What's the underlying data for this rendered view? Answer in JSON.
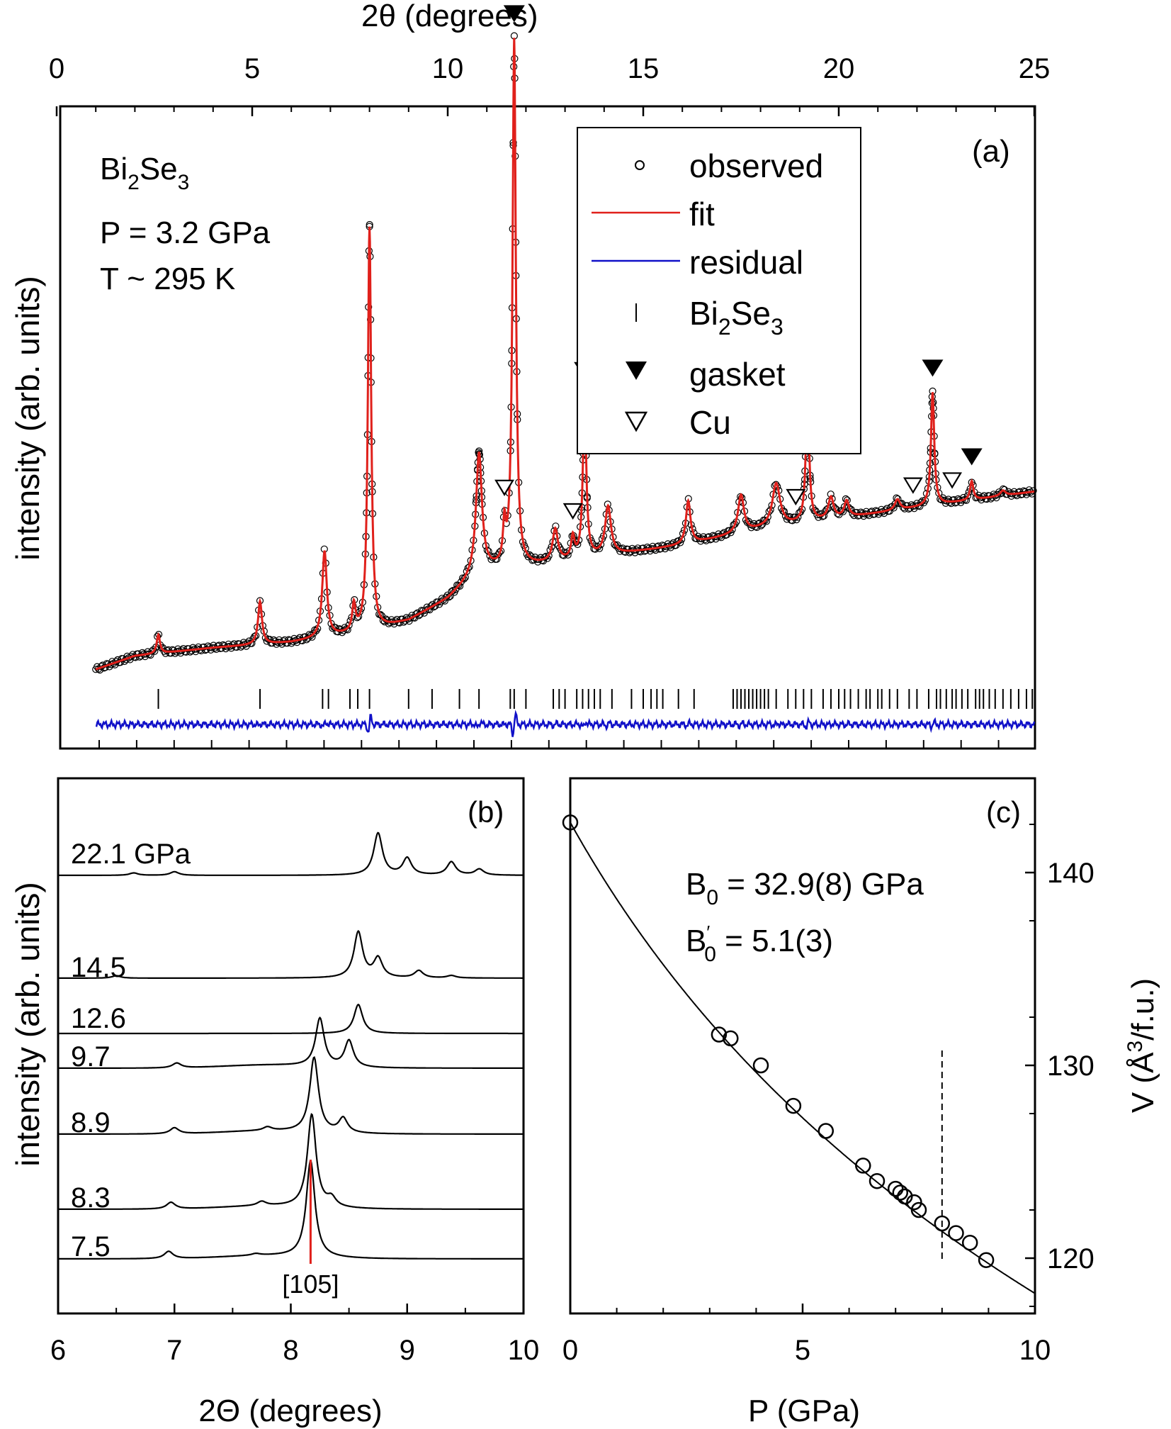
{
  "panel_a": {
    "label": "(a)",
    "top_axis_label": "2θ (degrees)",
    "ylabel": "intensity (arb. units)",
    "annotation": {
      "compound_base": "Bi",
      "compound_sub1": "2",
      "compound_mid": "Se",
      "compound_sub2": "3",
      "pressure": "P = 3.2 GPa",
      "temperature": "T ~ 295 K"
    },
    "legend": {
      "observed": "observed",
      "fit": "fit",
      "residual": "residual",
      "phase_base": "Bi",
      "phase_sub1": "2",
      "phase_mid": "Se",
      "phase_sub2": "3",
      "gasket": "gasket",
      "cu": "Cu"
    }
  },
  "panel_b": {
    "label": "(b)",
    "xlabel": "2Θ (degrees)",
    "ylabel": "intensity (arb. units)",
    "peak_label": "[105]"
  },
  "panel_c": {
    "label": "(c)",
    "xlabel": "P (GPa)",
    "ylabel_prefix": "V (",
    "ylabel_unit": "Å",
    "ylabel_sup": "3",
    "ylabel_suffix": "/f.u.)",
    "b0_base": "B",
    "b0_sub": "0",
    "b0_text": " = 32.9(8) GPa",
    "b0p_base": "B",
    "b0p_sub": "0",
    "b0p_sup": "′",
    "b0p_text": " = 5.1(3)"
  },
  "colors": {
    "fit": "#e0201b",
    "residual": "#1010c8",
    "marker_line": "#e0201b",
    "ink": "#000000"
  },
  "chart_data": [
    {
      "type": "line",
      "panel": "a",
      "title": "",
      "xlabel": "2θ (degrees)",
      "ylabel": "intensity (arb. units)",
      "xlim": [
        0,
        25
      ],
      "xticks": [
        0,
        5,
        10,
        15,
        20,
        25
      ],
      "x_axis_position": "top",
      "baseline": [
        [
          1.0,
          0.06
        ],
        [
          2,
          0.085
        ],
        [
          4,
          0.1
        ],
        [
          6,
          0.11
        ],
        [
          8,
          0.13
        ],
        [
          9,
          0.15
        ],
        [
          10,
          0.19
        ],
        [
          10.8,
          0.24
        ],
        [
          12,
          0.25
        ],
        [
          14,
          0.27
        ],
        [
          16,
          0.29
        ],
        [
          18,
          0.32
        ],
        [
          20,
          0.34
        ],
        [
          22,
          0.36
        ],
        [
          24,
          0.38
        ],
        [
          25,
          0.39
        ]
      ],
      "peaks": [
        {
          "x": 2.6,
          "height": 0.035,
          "width": 0.05
        },
        {
          "x": 5.2,
          "height": 0.08,
          "width": 0.06
        },
        {
          "x": 6.85,
          "height": 0.16,
          "width": 0.07
        },
        {
          "x": 7.6,
          "height": 0.05,
          "width": 0.05
        },
        {
          "x": 8.0,
          "height": 0.75,
          "width": 0.05
        },
        {
          "x": 10.8,
          "height": 0.22,
          "width": 0.09
        },
        {
          "x": 11.45,
          "height": 0.07,
          "width": 0.04
        },
        {
          "x": 11.7,
          "height": 0.98,
          "width": 0.05
        },
        {
          "x": 12.75,
          "height": 0.06,
          "width": 0.08
        },
        {
          "x": 13.2,
          "height": 0.04,
          "width": 0.05
        },
        {
          "x": 13.5,
          "height": 0.3,
          "width": 0.05
        },
        {
          "x": 14.1,
          "height": 0.09,
          "width": 0.09
        },
        {
          "x": 16.15,
          "height": 0.08,
          "width": 0.07
        },
        {
          "x": 17.5,
          "height": 0.07,
          "width": 0.09
        },
        {
          "x": 18.4,
          "height": 0.08,
          "width": 0.12
        },
        {
          "x": 19.2,
          "height": 0.24,
          "width": 0.05
        },
        {
          "x": 19.8,
          "height": 0.04,
          "width": 0.08
        },
        {
          "x": 20.2,
          "height": 0.03,
          "width": 0.07
        },
        {
          "x": 21.5,
          "height": 0.02,
          "width": 0.08
        },
        {
          "x": 22.4,
          "height": 0.21,
          "width": 0.05
        },
        {
          "x": 23.4,
          "height": 0.035,
          "width": 0.05
        },
        {
          "x": 24.2,
          "height": 0.01,
          "width": 0.08
        }
      ],
      "gasket_peaks": [
        11.7,
        13.5,
        19.2,
        22.4,
        23.4
      ],
      "cu_peaks": [
        11.45,
        13.2,
        18.9,
        21.9,
        22.9
      ],
      "bi2se3_reflections": [
        2.6,
        5.2,
        6.8,
        6.95,
        7.5,
        7.7,
        8.0,
        9.0,
        9.6,
        10.3,
        10.8,
        11.6,
        11.7,
        12.0,
        12.7,
        12.85,
        13.0,
        13.3,
        13.45,
        13.6,
        13.75,
        13.9,
        14.2,
        14.7,
        15.0,
        15.2,
        15.35,
        15.5,
        15.9,
        16.3,
        17.3,
        17.4,
        17.5,
        17.6,
        17.7,
        17.8,
        17.9,
        18.0,
        18.1,
        18.2,
        18.4,
        18.7,
        18.9,
        19.1,
        19.3,
        19.6,
        19.8,
        20.0,
        20.15,
        20.3,
        20.5,
        20.7,
        20.8,
        21.0,
        21.1,
        21.3,
        21.5,
        21.8,
        22.0,
        22.3,
        22.5,
        22.6,
        22.75,
        22.9,
        23.0,
        23.15,
        23.3,
        23.5,
        23.6,
        23.7,
        23.85,
        24.0,
        24.2,
        24.4,
        24.6,
        24.8,
        24.95
      ]
    },
    {
      "type": "line",
      "panel": "b",
      "title": "",
      "xlabel": "2Θ (degrees)",
      "ylabel": "intensity (arb. units)",
      "xlim": [
        6,
        10
      ],
      "xticks": [
        6,
        7,
        8,
        9,
        10
      ],
      "series": [
        {
          "name": "7.5",
          "peaks": [
            [
              6.95,
              0.6
            ],
            [
              7.7,
              0.15
            ],
            [
              8.17,
              8.0
            ]
          ]
        },
        {
          "name": "8.3",
          "peaks": [
            [
              6.97,
              0.55
            ],
            [
              7.75,
              0.35
            ],
            [
              8.18,
              7.7
            ],
            [
              8.35,
              0.7
            ]
          ]
        },
        {
          "name": "8.9",
          "peaks": [
            [
              7.0,
              0.5
            ],
            [
              7.8,
              0.3
            ],
            [
              8.2,
              6.2
            ],
            [
              8.45,
              1.2
            ]
          ]
        },
        {
          "name": "9.7",
          "peaks": [
            [
              7.02,
              0.4
            ],
            [
              8.25,
              4.0
            ],
            [
              8.5,
              2.2
            ]
          ]
        },
        {
          "name": "12.6",
          "peaks": [
            [
              8.58,
              2.4
            ]
          ]
        },
        {
          "name": "14.5",
          "peaks": [
            [
              6.5,
              0.2
            ],
            [
              8.58,
              3.8
            ],
            [
              8.75,
              1.6
            ],
            [
              9.1,
              0.6
            ],
            [
              9.38,
              0.2
            ]
          ]
        },
        {
          "name": "22.1 GPa",
          "peaks": [
            [
              6.65,
              0.2
            ],
            [
              7.0,
              0.3
            ],
            [
              8.75,
              3.5
            ],
            [
              9.0,
              1.4
            ],
            [
              9.38,
              1.1
            ],
            [
              9.62,
              0.5
            ]
          ]
        }
      ],
      "marker": {
        "label": "[105]",
        "x": 8.17
      }
    },
    {
      "type": "scatter",
      "panel": "c",
      "title": "",
      "xlabel": "P (GPa)",
      "ylabel": "V (Å3/f.u.)",
      "xlim": [
        0,
        10
      ],
      "ylim": [
        116.5,
        143.5
      ],
      "xticks": [
        0,
        5,
        10
      ],
      "yticks": [
        120,
        130,
        140
      ],
      "y_axis_position": "right",
      "points": [
        [
          0.0,
          142.6
        ],
        [
          3.2,
          131.6
        ],
        [
          3.45,
          131.4
        ],
        [
          4.1,
          130.0
        ],
        [
          4.8,
          127.9
        ],
        [
          5.5,
          126.6
        ],
        [
          6.3,
          124.8
        ],
        [
          6.6,
          124.0
        ],
        [
          7.0,
          123.6
        ],
        [
          7.1,
          123.4
        ],
        [
          7.2,
          123.2
        ],
        [
          7.4,
          122.9
        ],
        [
          7.5,
          122.5
        ],
        [
          8.0,
          121.8
        ],
        [
          8.3,
          121.3
        ],
        [
          8.6,
          120.8
        ],
        [
          8.95,
          119.9
        ]
      ],
      "fit_curve": {
        "V0": 142.6,
        "B0": 32.9,
        "B0_prime": 5.1
      },
      "vertical_marker_x": 8.0
    }
  ]
}
